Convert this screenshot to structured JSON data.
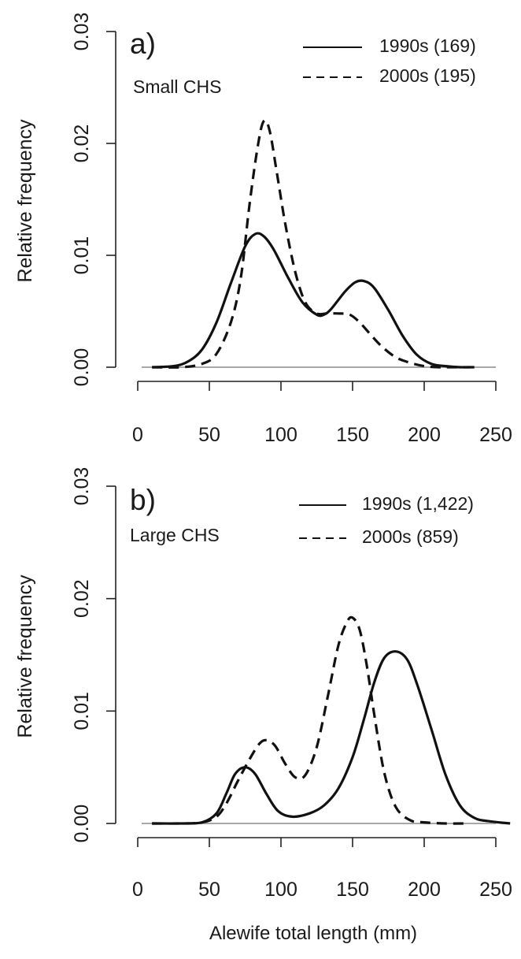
{
  "xlabel": "Alewife total length (mm)",
  "chart_data": [
    {
      "type": "line",
      "panel_label": "a)",
      "subtitle": "Small CHS",
      "xlabel": "",
      "ylabel": "Relative frequency",
      "xlim": [
        0,
        250
      ],
      "ylim": [
        0,
        0.03
      ],
      "xticks": [
        "0",
        "50",
        "100",
        "150",
        "200",
        "250"
      ],
      "yticks": [
        "0.00",
        "0.01",
        "0.02",
        "0.03"
      ],
      "legend_position": "top-right",
      "grid": false,
      "series": [
        {
          "name": "1990s (169)",
          "style": "solid",
          "x": [
            10,
            25,
            35,
            45,
            55,
            65,
            75,
            82,
            88,
            95,
            105,
            115,
            125,
            130,
            135,
            145,
            152,
            158,
            165,
            175,
            185,
            195,
            205,
            215,
            225,
            235
          ],
          "y": [
            0.0,
            0.0001,
            0.0005,
            0.0016,
            0.004,
            0.0075,
            0.0108,
            0.0119,
            0.0117,
            0.0105,
            0.008,
            0.0058,
            0.0047,
            0.0047,
            0.0052,
            0.0068,
            0.0076,
            0.0077,
            0.0071,
            0.0051,
            0.0028,
            0.0011,
            0.0003,
            0.0001,
            0.0,
            0.0
          ]
        },
        {
          "name": "2000s (195)",
          "style": "dashed",
          "x": [
            10,
            30,
            45,
            55,
            65,
            72,
            78,
            84,
            88,
            92,
            97,
            103,
            110,
            117,
            125,
            132,
            140,
            148,
            155,
            162,
            170,
            180,
            190,
            200,
            210,
            220,
            232
          ],
          "y": [
            0.0,
            0.0,
            0.0003,
            0.0012,
            0.004,
            0.008,
            0.0145,
            0.0199,
            0.022,
            0.0212,
            0.0175,
            0.0128,
            0.0085,
            0.0058,
            0.0048,
            0.0048,
            0.0048,
            0.0047,
            0.004,
            0.003,
            0.0019,
            0.0009,
            0.0004,
            0.0001,
            0.0,
            0.0,
            0.0
          ]
        }
      ]
    },
    {
      "type": "line",
      "panel_label": "b)",
      "subtitle": "Large CHS",
      "xlabel": "Alewife total length (mm)",
      "ylabel": "Relative frequency",
      "xlim": [
        0,
        250
      ],
      "ylim": [
        0,
        0.03
      ],
      "xticks": [
        "0",
        "50",
        "100",
        "150",
        "200",
        "250"
      ],
      "yticks": [
        "0.00",
        "0.01",
        "0.02",
        "0.03"
      ],
      "legend_position": "top-right",
      "grid": false,
      "series": [
        {
          "name": "1990s (1,422)",
          "style": "solid",
          "x": [
            10,
            30,
            45,
            55,
            62,
            68,
            75,
            82,
            90,
            98,
            108,
            120,
            130,
            140,
            150,
            158,
            165,
            172,
            180,
            188,
            195,
            205,
            215,
            225,
            235,
            245,
            260
          ],
          "y": [
            0.0,
            0.0,
            0.0001,
            0.0009,
            0.0027,
            0.0044,
            0.005,
            0.0044,
            0.0026,
            0.0011,
            0.0006,
            0.0009,
            0.0016,
            0.0031,
            0.0059,
            0.0093,
            0.0125,
            0.0147,
            0.0153,
            0.0146,
            0.0124,
            0.0084,
            0.0043,
            0.0016,
            0.0005,
            0.0002,
            0.0
          ]
        },
        {
          "name": "2000s (859)",
          "style": "dashed",
          "x": [
            10,
            30,
            45,
            55,
            62,
            70,
            78,
            85,
            90,
            96,
            103,
            110,
            117,
            125,
            133,
            140,
            146,
            150,
            155,
            160,
            165,
            172,
            180,
            190,
            200,
            215,
            230
          ],
          "y": [
            0.0,
            0.0,
            0.0001,
            0.0006,
            0.0018,
            0.0038,
            0.0057,
            0.0071,
            0.0074,
            0.0069,
            0.0053,
            0.0041,
            0.0043,
            0.0068,
            0.0115,
            0.0158,
            0.0179,
            0.0183,
            0.0172,
            0.014,
            0.0098,
            0.0046,
            0.0015,
            0.0003,
            0.0001,
            0.0,
            0.0
          ]
        }
      ]
    }
  ]
}
